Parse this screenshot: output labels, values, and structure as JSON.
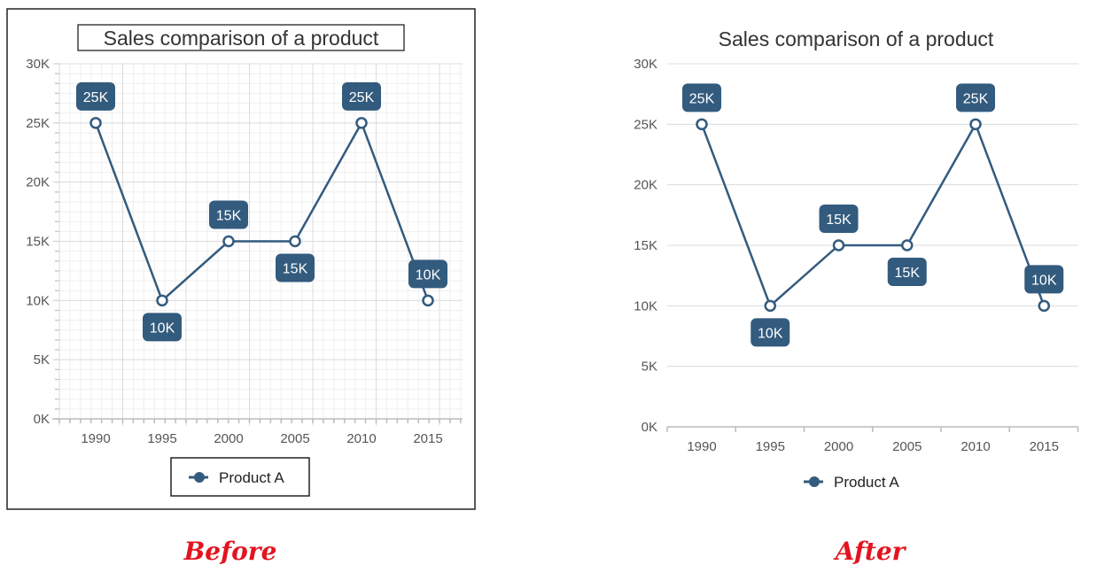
{
  "colors": {
    "series": "#335b7e",
    "caption": "#e3141f",
    "grid_major": "#dcdcdc",
    "grid_minor": "#efefef"
  },
  "captions": {
    "before": "Before",
    "after": "After"
  },
  "chart_data": [
    {
      "panel": "before",
      "type": "line",
      "title": "Sales comparison of a product",
      "xlabel": "",
      "ylabel": "",
      "x": [
        1990,
        1995,
        2000,
        2005,
        2010,
        2015
      ],
      "x_tick_labels": [
        "1990",
        "1995",
        "2000",
        "2005",
        "2010",
        "2015"
      ],
      "y_tick_labels": [
        "0K",
        "5K",
        "10K",
        "15K",
        "20K",
        "25K",
        "30K"
      ],
      "ylim": [
        0,
        30000
      ],
      "grid": "major and minor",
      "series": [
        {
          "name": "Product A",
          "values": [
            25000,
            10000,
            15000,
            15000,
            25000,
            10000
          ],
          "data_labels": [
            "25K",
            "10K",
            "15K",
            "15K",
            "25K",
            "10K"
          ]
        }
      ],
      "legend": "bottom-center",
      "legend_label": "Product A"
    },
    {
      "panel": "after",
      "type": "line",
      "title": "Sales comparison of a product",
      "xlabel": "",
      "ylabel": "",
      "x": [
        1990,
        1995,
        2000,
        2005,
        2010,
        2015
      ],
      "x_tick_labels": [
        "1990",
        "1995",
        "2000",
        "2005",
        "2010",
        "2015"
      ],
      "y_tick_labels": [
        "0K",
        "5K",
        "10K",
        "15K",
        "20K",
        "25K",
        "30K"
      ],
      "ylim": [
        0,
        30000
      ],
      "grid": "horizontal major",
      "series": [
        {
          "name": "Product A",
          "values": [
            25000,
            10000,
            15000,
            15000,
            25000,
            10000
          ],
          "data_labels": [
            "25K",
            "10K",
            "15K",
            "15K",
            "25K",
            "10K"
          ]
        }
      ],
      "legend": "bottom-center",
      "legend_label": "Product A"
    }
  ]
}
